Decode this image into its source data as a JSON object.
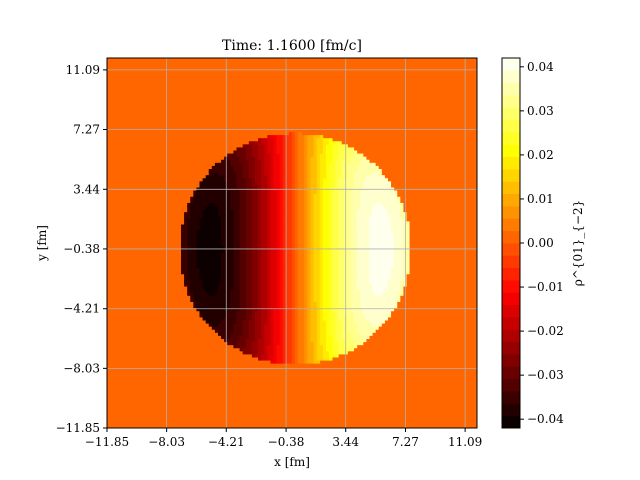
{
  "chart_data": {
    "type": "heatmap",
    "title": "Time: 1.1600 [fm/c]",
    "xlabel": "x [fm]",
    "ylabel": "y [fm]",
    "xlim": [
      -11.85,
      11.85
    ],
    "ylim": [
      -11.85,
      11.85
    ],
    "xticks": [
      "−11.85",
      "−8.03",
      "−4.21",
      "−0.38",
      "3.44",
      "7.27",
      "11.09"
    ],
    "xtick_values": [
      -11.85,
      -8.03,
      -4.21,
      -0.38,
      3.44,
      7.27,
      11.09
    ],
    "yticks": [
      "−11.85",
      "−8.03",
      "−4.21",
      "−0.38",
      "3.44",
      "7.27",
      "11.09"
    ],
    "ytick_values": [
      -11.85,
      -8.03,
      -4.21,
      -0.38,
      3.44,
      7.27,
      11.09
    ],
    "grid": true,
    "colormap": "hot",
    "background_value": 0.0,
    "field": {
      "shape": "disk",
      "center": [
        0.2,
        -0.38
      ],
      "radius": 7.4,
      "amplitude": 0.042,
      "pattern": "dipole along x: negative minimum near x≈−6.7, positive maximum near x≈+6.4"
    },
    "colorbar": {
      "label": "ρ^{01}_{−2}",
      "vmin": -0.042,
      "vmax": 0.042,
      "levels": 30,
      "ticks": [
        "−0.04",
        "−0.03",
        "−0.02",
        "−0.01",
        "0.00",
        "0.01",
        "0.02",
        "0.03",
        "0.04"
      ],
      "tick_values": [
        -0.04,
        -0.03,
        -0.02,
        -0.01,
        0.0,
        0.01,
        0.02,
        0.03,
        0.04
      ]
    }
  }
}
